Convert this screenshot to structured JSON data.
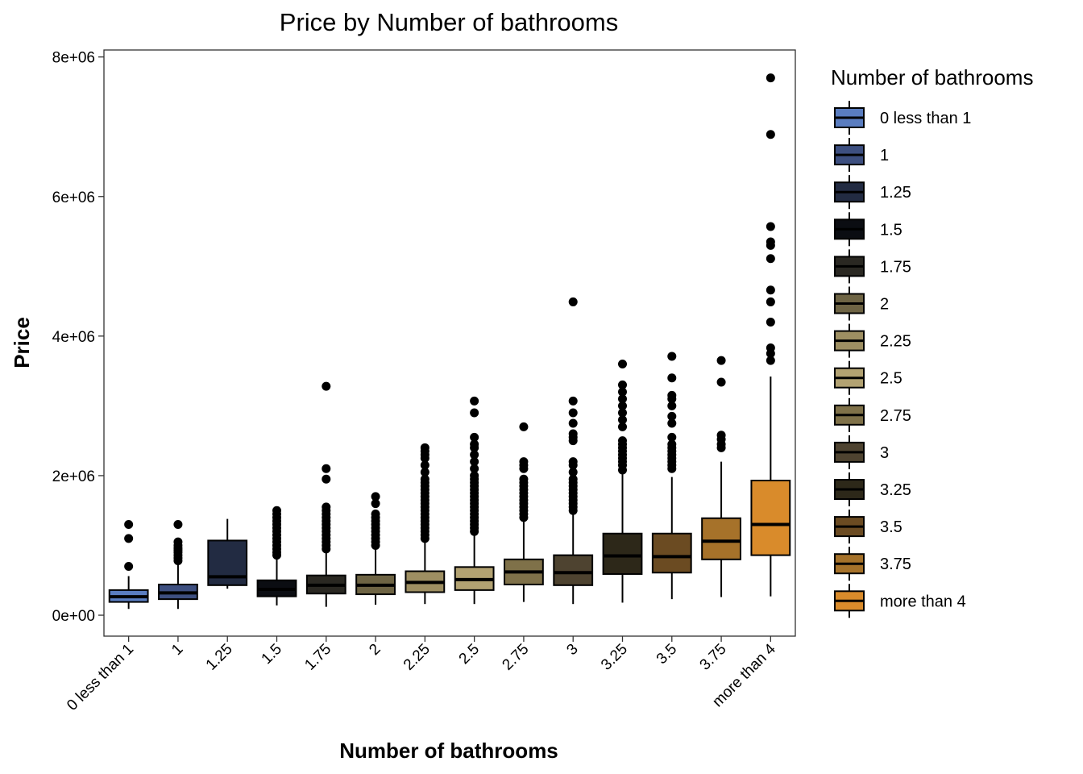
{
  "chart_data": {
    "type": "box",
    "title": "Price by Number of bathrooms",
    "xlabel": "Number of bathrooms",
    "ylabel": "Price",
    "ylim": [
      -300000,
      8100000
    ],
    "yticks": [
      0,
      2000000,
      4000000,
      6000000,
      8000000
    ],
    "ytick_labels": [
      "0e+00",
      "2e+06",
      "4e+06",
      "6e+06",
      "8e+06"
    ],
    "grid": false,
    "legend": {
      "title": "Number of bathrooms",
      "position": "right"
    },
    "categories": [
      "0 less than 1",
      "1",
      "1.25",
      "1.5",
      "1.75",
      "2",
      "2.25",
      "2.5",
      "2.75",
      "3",
      "3.25",
      "3.5",
      "3.75",
      "more than 4"
    ],
    "colors": [
      "#5a7dc0",
      "#3d4f80",
      "#222b42",
      "#0b0d12",
      "#2a2822",
      "#6e6444",
      "#9e8f62",
      "#b2a272",
      "#7f7149",
      "#4e4330",
      "#2d2819",
      "#6b4b22",
      "#a6722a",
      "#d98b2b"
    ],
    "boxes": [
      {
        "whisker_low": 90000,
        "q1": 190000,
        "median": 265000,
        "q3": 360000,
        "whisker_high": 560000,
        "outliers": [
          700000,
          1100000,
          1300000
        ]
      },
      {
        "whisker_low": 90000,
        "q1": 230000,
        "median": 320000,
        "q3": 440000,
        "whisker_high": 750000,
        "outliers": [
          780000,
          820000,
          860000,
          900000,
          930000,
          960000,
          1000000,
          1050000,
          1300000
        ]
      },
      {
        "whisker_low": 380000,
        "q1": 430000,
        "median": 550000,
        "q3": 1070000,
        "whisker_high": 1380000,
        "outliers": []
      },
      {
        "whisker_low": 140000,
        "q1": 270000,
        "median": 370000,
        "q3": 500000,
        "whisker_high": 810000,
        "outliers": [
          860000,
          900000,
          950000,
          1000000,
          1050000,
          1100000,
          1150000,
          1200000,
          1250000,
          1300000,
          1350000,
          1400000,
          1450000,
          1500000
        ]
      },
      {
        "whisker_low": 120000,
        "q1": 310000,
        "median": 430000,
        "q3": 570000,
        "whisker_high": 900000,
        "outliers": [
          950000,
          1000000,
          1050000,
          1100000,
          1150000,
          1200000,
          1250000,
          1300000,
          1350000,
          1400000,
          1450000,
          1500000,
          1550000,
          1950000,
          2100000,
          3280000
        ]
      },
      {
        "whisker_low": 150000,
        "q1": 300000,
        "median": 430000,
        "q3": 580000,
        "whisker_high": 950000,
        "outliers": [
          1000000,
          1050000,
          1100000,
          1150000,
          1200000,
          1250000,
          1300000,
          1350000,
          1400000,
          1450000,
          1600000,
          1700000
        ]
      },
      {
        "whisker_low": 160000,
        "q1": 330000,
        "median": 470000,
        "q3": 630000,
        "whisker_high": 1050000,
        "outliers": [
          1100000,
          1150000,
          1200000,
          1250000,
          1300000,
          1350000,
          1400000,
          1450000,
          1500000,
          1550000,
          1600000,
          1650000,
          1700000,
          1750000,
          1800000,
          1850000,
          1900000,
          1950000,
          2050000,
          2150000,
          2250000,
          2300000,
          2350000,
          2400000
        ]
      },
      {
        "whisker_low": 160000,
        "q1": 360000,
        "median": 510000,
        "q3": 690000,
        "whisker_high": 1150000,
        "outliers": [
          1200000,
          1250000,
          1300000,
          1350000,
          1400000,
          1450000,
          1500000,
          1550000,
          1600000,
          1650000,
          1700000,
          1750000,
          1800000,
          1850000,
          1900000,
          1950000,
          2000000,
          2100000,
          2200000,
          2300000,
          2400000,
          2450000,
          2550000,
          2900000,
          3070000
        ]
      },
      {
        "whisker_low": 190000,
        "q1": 440000,
        "median": 620000,
        "q3": 800000,
        "whisker_high": 1350000,
        "outliers": [
          1400000,
          1450000,
          1500000,
          1550000,
          1600000,
          1650000,
          1700000,
          1750000,
          1800000,
          1850000,
          1900000,
          1950000,
          2100000,
          2150000,
          2200000,
          2700000
        ]
      },
      {
        "whisker_low": 160000,
        "q1": 430000,
        "median": 610000,
        "q3": 860000,
        "whisker_high": 1480000,
        "outliers": [
          1500000,
          1550000,
          1600000,
          1650000,
          1700000,
          1750000,
          1800000,
          1850000,
          1900000,
          1950000,
          2050000,
          2150000,
          2200000,
          2500000,
          2550000,
          2600000,
          2750000,
          2900000,
          3070000,
          4490000
        ]
      },
      {
        "whisker_low": 180000,
        "q1": 590000,
        "median": 850000,
        "q3": 1170000,
        "whisker_high": 2020000,
        "outliers": [
          2080000,
          2150000,
          2200000,
          2250000,
          2300000,
          2350000,
          2400000,
          2450000,
          2500000,
          2700000,
          2800000,
          2900000,
          3000000,
          3100000,
          3200000,
          3300000,
          3600000
        ]
      },
      {
        "whisker_low": 230000,
        "q1": 610000,
        "median": 840000,
        "q3": 1170000,
        "whisker_high": 1980000,
        "outliers": [
          2100000,
          2150000,
          2200000,
          2250000,
          2300000,
          2350000,
          2400000,
          2450000,
          2550000,
          2750000,
          2850000,
          3000000,
          3100000,
          3150000,
          3400000,
          3710000
        ]
      },
      {
        "whisker_low": 260000,
        "q1": 800000,
        "median": 1060000,
        "q3": 1390000,
        "whisker_high": 2200000,
        "outliers": [
          2400000,
          2450000,
          2520000,
          2580000,
          3340000,
          3650000
        ]
      },
      {
        "whisker_low": 270000,
        "q1": 860000,
        "median": 1300000,
        "q3": 1930000,
        "whisker_high": 3420000,
        "outliers": [
          3650000,
          3750000,
          3830000,
          4200000,
          4490000,
          4660000,
          5110000,
          5300000,
          5350000,
          5570000,
          6890000,
          7700000
        ]
      }
    ]
  }
}
